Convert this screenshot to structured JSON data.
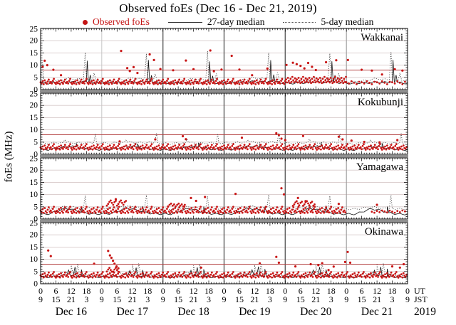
{
  "title": "Observed foEs (Dec 16 - Dec 21, 2019)",
  "legend": {
    "observed_label": "Observed foEs",
    "median27_label": "27-day median",
    "median5_label": "5-day median"
  },
  "y_axis": {
    "label": "foEs (MHz)",
    "ticks": [
      0,
      5,
      10,
      15,
      20,
      25
    ],
    "max": 25
  },
  "x_axis": {
    "ut_ticks": [
      "0",
      "6",
      "12",
      "18"
    ],
    "jst_ticks": [
      "9",
      "15",
      "21",
      "3"
    ],
    "end_ut": "0",
    "end_jst": "9",
    "ut_suffix": "UT",
    "jst_suffix": "JST",
    "days": [
      "Dec 16",
      "Dec 17",
      "Dec 18",
      "Dec 19",
      "Dec 20",
      "Dec 21"
    ],
    "year": "2019"
  },
  "colors": {
    "dot": "#c81616",
    "redline": "#b34040",
    "m27": "#151515",
    "m5": "#3c3c3c",
    "grid": "#d8c9c9",
    "panel_border": "#000000",
    "separator": "#8f8f8f",
    "text": "#000000"
  },
  "chart_data": {
    "type": "scatter",
    "x_range_hours": [
      0,
      144
    ],
    "ylim": [
      0,
      25
    ],
    "grid_values": [
      5,
      10,
      15,
      20
    ],
    "wiggle": 0.35,
    "day_lines": [
      {
        "pos": 1,
        "color": "#c6c6c6",
        "w": 1
      },
      {
        "pos": 2,
        "color": "#5f5f5f",
        "w": 1.4
      },
      {
        "pos": 3,
        "color": "#5f5f5f",
        "w": 1.4
      },
      {
        "pos": 4,
        "color": "#5f5f5f",
        "w": 1.4
      },
      {
        "pos": 5,
        "color": "#9c9c9c",
        "w": 1.1
      }
    ],
    "stations": [
      {
        "name": "Wakkanai",
        "redline": 8,
        "day_var": [
          1,
          1.03,
          0.97,
          1.05,
          1.0,
          0.98
        ],
        "m27_daily": [
          2.7,
          2.5,
          2.7,
          2.9,
          2.7,
          3.0,
          3.2,
          2.9,
          3.1,
          3.3,
          3.0,
          2.7
        ],
        "m27_spikes": [
          [
            18.3,
            11.8
          ],
          [
            42.3,
            12.1
          ],
          [
            66.3,
            11.5
          ],
          [
            90.3,
            12.0
          ],
          [
            114.3,
            11.6
          ],
          [
            138.3,
            12.2
          ],
          [
            19.5,
            6.0
          ],
          [
            43.5,
            5.8
          ],
          [
            67.5,
            5.6
          ],
          [
            91.5,
            6.1
          ],
          [
            115.5,
            5.9
          ],
          [
            139.5,
            6.0
          ]
        ],
        "m5_daily": [
          3.4,
          3.1,
          3.3,
          3.6,
          3.9,
          4.3,
          4.6,
          4.3,
          4.1,
          4.4,
          3.9,
          3.5
        ],
        "m5_spikes": [
          [
            0.6,
            11.9
          ],
          [
            17.5,
            15.2
          ],
          [
            41.5,
            14.7
          ],
          [
            65.5,
            15.8
          ],
          [
            89.5,
            15.1
          ],
          [
            113.5,
            14.8
          ],
          [
            137.5,
            15.4
          ],
          [
            21.0,
            6.8
          ],
          [
            45.0,
            6.5
          ],
          [
            69.0,
            6.6
          ],
          [
            93.0,
            7.0
          ],
          [
            117.0,
            6.7
          ],
          [
            141.0,
            6.9
          ]
        ],
        "dot_bands": [
          [
            0,
            96,
            0.4,
            [
              3.0,
              2.6,
              3.4,
              2.2,
              3.8,
              2.9,
              2.4,
              3.3,
              4.1,
              2.7,
              3.1,
              2.5,
              3.6,
              4.4,
              2.8,
              2.3
            ]
          ],
          [
            96,
            120,
            0.35,
            [
              3.4,
              4.2,
              2.9,
              4.8,
              3.6,
              2.7,
              4.4,
              3.1,
              5.2,
              3.8,
              3.0,
              4.6
            ]
          ],
          [
            120,
            144,
            1.0,
            [
              3.0,
              2.5,
              3.4,
              2.8,
              2.2,
              3.2
            ]
          ]
        ],
        "dot_extra": [
          [
            0.8,
            9.3
          ],
          [
            1.6,
            11.8
          ],
          [
            2.6,
            10.0
          ],
          [
            5,
            8.1
          ],
          [
            8,
            5.9
          ],
          [
            31.6,
            15.8
          ],
          [
            34,
            8.8
          ],
          [
            35,
            7.6
          ],
          [
            36.5,
            9.2
          ],
          [
            38,
            6.8
          ],
          [
            42.8,
            14.4
          ],
          [
            44.5,
            12.1
          ],
          [
            47,
            8.4
          ],
          [
            52,
            7.9
          ],
          [
            57,
            11.9
          ],
          [
            60,
            8.3
          ],
          [
            66.6,
            16.0
          ],
          [
            68,
            7.5
          ],
          [
            71,
            8.2
          ],
          [
            75,
            13.8
          ],
          [
            78,
            8.2
          ],
          [
            83,
            5.9
          ],
          [
            89,
            8.6
          ],
          [
            96.5,
            10.1
          ],
          [
            99,
            11.0
          ],
          [
            100.5,
            10.4
          ],
          [
            102,
            9.7
          ],
          [
            103.5,
            8.7
          ],
          [
            105,
            10.9
          ],
          [
            106.5,
            9.3
          ],
          [
            108,
            8.0
          ],
          [
            112,
            11.2
          ],
          [
            116,
            12.0
          ],
          [
            120.6,
            12.1
          ],
          [
            126,
            8.1
          ],
          [
            130,
            7.8
          ],
          [
            134,
            6.2
          ],
          [
            139,
            8.3
          ],
          [
            142,
            7.8
          ]
        ]
      },
      {
        "name": "Kokubunji",
        "redline": 8,
        "day_var": [
          1,
          1.02,
          0.98,
          1.04,
          1.01,
          0.97
        ],
        "m27_daily": [
          2.0,
          1.8,
          2.1,
          2.4,
          2.8,
          3.1,
          3.3,
          3.0,
          2.6,
          2.3,
          2.1,
          1.9
        ],
        "m27_spikes": [
          [
            14,
            4.5
          ],
          [
            38,
            4.3
          ],
          [
            62,
            4.7
          ],
          [
            86,
            4.4
          ],
          [
            110,
            4.8
          ],
          [
            134,
            4.5
          ]
        ],
        "m5_daily": [
          4.6,
          4.4,
          4.5,
          4.7,
          4.8,
          4.9,
          4.8,
          4.7,
          4.6,
          4.8,
          4.6,
          4.5
        ],
        "m5_spikes": [
          [
            21.5,
            8.3
          ],
          [
            45.5,
            8.6
          ],
          [
            69.5,
            8.2
          ],
          [
            93.5,
            8.8
          ],
          [
            117.5,
            8.4
          ],
          [
            141.5,
            8.6
          ],
          [
            9.5,
            6.0
          ],
          [
            33.5,
            5.8
          ],
          [
            57.5,
            6.2
          ],
          [
            81.5,
            5.9
          ],
          [
            105.5,
            6.3
          ],
          [
            129.5,
            6.0
          ]
        ],
        "dot_bands": [
          [
            0,
            144,
            0.4,
            [
              2.8,
              2.3,
              3.2,
              2.0,
              3.6,
              2.6,
              2.2,
              3.0,
              3.9,
              2.5,
              2.9,
              2.1,
              3.4,
              4.2,
              2.6,
              1.9
            ]
          ]
        ],
        "dot_extra": [
          [
            31,
            5.3
          ],
          [
            45,
            6.1
          ],
          [
            55.8,
            7.4
          ],
          [
            57,
            6.2
          ],
          [
            79,
            6.8
          ],
          [
            92.5,
            8.6
          ],
          [
            93.5,
            7.9
          ],
          [
            94.5,
            6.4
          ],
          [
            96,
            5.8
          ],
          [
            103,
            7.5
          ],
          [
            117,
            7.2
          ],
          [
            118.5,
            6.1
          ],
          [
            122,
            5.6
          ],
          [
            127,
            5.1
          ],
          [
            133,
            4.9
          ],
          [
            140,
            5.8
          ]
        ]
      },
      {
        "name": "Yamagawa",
        "redline": null,
        "day_var": [
          1,
          1.04,
          0.98,
          1.03,
          1.0,
          0.96
        ],
        "m27_daily": [
          2.2,
          2.0,
          2.3,
          3.0,
          3.8,
          4.3,
          4.0,
          3.4,
          2.8,
          2.4,
          2.2,
          2.0
        ],
        "m27_spikes": [
          [
            16,
            5.0
          ],
          [
            40,
            5.3
          ],
          [
            64,
            5.1
          ],
          [
            88,
            5.0
          ],
          [
            112,
            5.5
          ],
          [
            136,
            5.1
          ]
        ],
        "m5_daily": [
          4.4,
          4.2,
          4.3,
          4.6,
          4.9,
          5.1,
          4.9,
          4.6,
          4.4,
          4.5,
          4.3,
          4.2
        ],
        "m5_spikes": [
          [
            17.5,
            9.6
          ],
          [
            41.5,
            9.8
          ],
          [
            65.5,
            9.3
          ],
          [
            89.5,
            9.9
          ],
          [
            113.5,
            9.5
          ],
          [
            137.5,
            9.7
          ]
        ],
        "dot_bands": [
          [
            0,
            120,
            0.4,
            [
              3.4,
              2.8,
              4.0,
              2.5,
              4.5,
              3.2,
              2.6,
              3.8,
              4.8,
              3.0,
              3.5,
              2.7,
              4.2,
              5.0,
              3.1,
              2.4
            ]
          ],
          [
            26,
            34,
            0.5,
            [
              5.5,
              6.2,
              7.0,
              7.6,
              6.6,
              5.8,
              6.9,
              7.4
            ]
          ],
          [
            50,
            57,
            0.6,
            [
              5.2,
              5.8,
              6.3,
              5.5,
              6.0
            ]
          ],
          [
            99,
            108,
            0.5,
            [
              5.4,
              6.0,
              6.8,
              7.3,
              6.4,
              5.6,
              6.6,
              7.1
            ]
          ],
          [
            130,
            144,
            1.0,
            [
              3.0,
              2.6,
              3.3,
              2.8,
              3.5,
              3.1,
              2.7,
              3.4
            ]
          ]
        ],
        "dot_extra": [
          [
            29.5,
            8.1
          ],
          [
            59,
            8.6
          ],
          [
            61,
            7.4
          ],
          [
            64.5,
            9.0
          ],
          [
            76.5,
            10.3
          ],
          [
            94.5,
            12.6
          ],
          [
            95.5,
            10.1
          ],
          [
            101,
            8.6
          ],
          [
            104,
            7.3
          ],
          [
            117,
            6.2
          ],
          [
            132,
            5.8
          ]
        ]
      },
      {
        "name": "Okinawa",
        "redline": 8,
        "day_var": [
          1,
          1.02,
          0.97,
          1.03,
          1.01,
          0.98
        ],
        "m27_daily": [
          2.9,
          2.7,
          2.8,
          3.0,
          3.3,
          3.6,
          3.4,
          3.2,
          3.0,
          2.9,
          2.8,
          2.7
        ],
        "m27_spikes": [
          [
            11,
            5.6
          ],
          [
            13.5,
            6.9
          ],
          [
            16,
            5.8
          ],
          [
            35,
            5.4
          ],
          [
            37.5,
            6.6
          ],
          [
            40,
            5.6
          ],
          [
            59,
            5.5
          ],
          [
            61.5,
            6.7
          ],
          [
            64,
            5.9
          ],
          [
            83,
            5.7
          ],
          [
            85.5,
            7.0
          ],
          [
            88,
            6.0
          ],
          [
            107,
            5.6
          ],
          [
            109.5,
            6.8
          ],
          [
            112,
            5.8
          ],
          [
            131,
            5.5
          ],
          [
            133.5,
            6.9
          ],
          [
            136,
            6.1
          ]
        ],
        "m5_daily": [
          3.6,
          3.4,
          3.5,
          3.7,
          4.2,
          4.6,
          4.4,
          4.1,
          3.8,
          3.7,
          3.5,
          3.4
        ],
        "m5_spikes": [
          [
            12,
            7.6
          ],
          [
            14.5,
            8.2
          ],
          [
            36,
            7.8
          ],
          [
            38.5,
            8.3
          ],
          [
            60,
            7.5
          ],
          [
            62.5,
            8.1
          ],
          [
            84,
            7.7
          ],
          [
            86.5,
            8.4
          ],
          [
            108,
            7.6
          ],
          [
            110.5,
            8.2
          ],
          [
            132,
            7.8
          ],
          [
            134.5,
            8.3
          ]
        ],
        "dot_bands": [
          [
            0,
            144,
            0.4,
            [
              3.4,
              2.9,
              3.9,
              2.6,
              4.3,
              3.3,
              2.8,
              3.7,
              4.6,
              3.1,
              3.6,
              2.8,
              4.1,
              4.8,
              3.0,
              2.5
            ]
          ],
          [
            26,
            31,
            0.5,
            [
              5.0,
              5.8,
              6.5,
              5.6,
              4.9
            ]
          ]
        ],
        "dot_extra": [
          [
            3,
            13.6
          ],
          [
            4,
            11.3
          ],
          [
            21,
            8.2
          ],
          [
            26.5,
            13.4
          ],
          [
            27.2,
            11.6
          ],
          [
            27.8,
            10.6
          ],
          [
            28.4,
            9.4
          ],
          [
            29,
            8.2
          ],
          [
            29.8,
            7.1
          ],
          [
            30.5,
            6.3
          ],
          [
            63,
            6.6
          ],
          [
            86,
            8.3
          ],
          [
            92.5,
            11.0
          ],
          [
            93.5,
            8.6
          ],
          [
            100,
            7.1
          ],
          [
            106,
            8.0
          ],
          [
            109,
            7.6
          ],
          [
            110.5,
            8.4
          ],
          [
            113,
            5.6
          ],
          [
            115,
            7.0
          ],
          [
            119.5,
            8.9
          ],
          [
            120.5,
            13.0
          ],
          [
            121.5,
            8.6
          ],
          [
            138,
            7.1
          ],
          [
            141,
            6.6
          ],
          [
            142.5,
            8.0
          ]
        ]
      }
    ]
  }
}
